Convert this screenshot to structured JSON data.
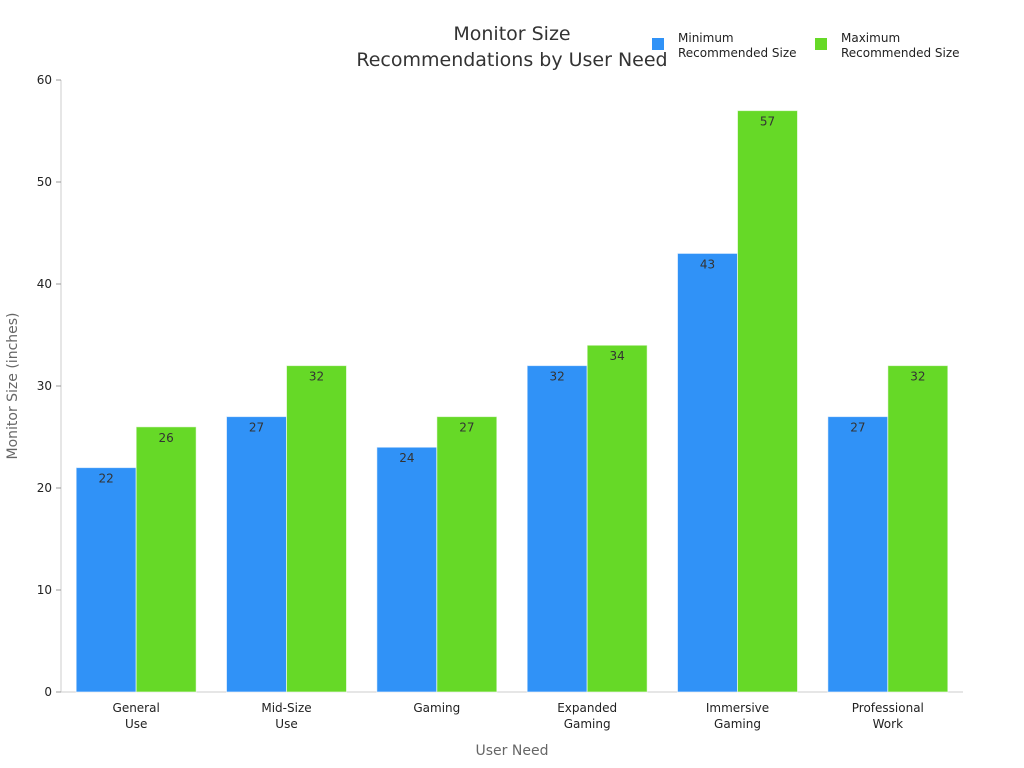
{
  "chart_data": {
    "type": "bar",
    "title": [
      "Monitor Size",
      "Recommendations by User Need"
    ],
    "xlabel": "User Need",
    "ylabel": "Monitor Size (inches)",
    "ylim": [
      0,
      60
    ],
    "yticks": [
      0,
      10,
      20,
      30,
      40,
      50,
      60
    ],
    "categories": [
      [
        "General",
        "Use"
      ],
      [
        "Mid-Size",
        "Use"
      ],
      [
        "Gaming"
      ],
      [
        "Expanded",
        "Gaming"
      ],
      [
        "Immersive",
        "Gaming"
      ],
      [
        "Professional",
        "Work"
      ]
    ],
    "series": [
      {
        "name": [
          "Minimum",
          "Recommended Size"
        ],
        "color": "#3092f7",
        "values": [
          22,
          27,
          24,
          32,
          43,
          27
        ]
      },
      {
        "name": [
          "Maximum",
          "Recommended Size"
        ],
        "color": "#66d927",
        "values": [
          26,
          32,
          27,
          34,
          57,
          32
        ]
      }
    ],
    "legend_position": "top-right",
    "grid": false
  }
}
